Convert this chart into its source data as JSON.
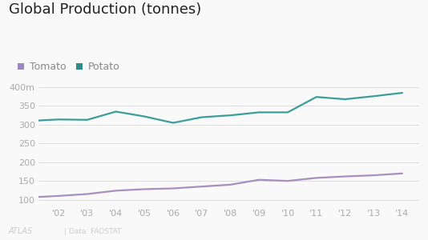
{
  "title": "Global Production (tonnes)",
  "years": [
    2001,
    2002,
    2003,
    2004,
    2005,
    2006,
    2007,
    2008,
    2009,
    2010,
    2011,
    2012,
    2013,
    2014
  ],
  "tomato": [
    106,
    110,
    115,
    124,
    128,
    130,
    135,
    140,
    153,
    150,
    158,
    162,
    165,
    170
  ],
  "potato": [
    310,
    314,
    313,
    335,
    322,
    305,
    320,
    325,
    333,
    333,
    374,
    368,
    376,
    385
  ],
  "tomato_color": "#a78fbf",
  "potato_color": "#3a9e9a",
  "background_color": "#f9f9f9",
  "grid_color": "#dddddd",
  "tick_labels": [
    "'02",
    "'03",
    "'04",
    "'05",
    "'06",
    "'07",
    "'08",
    "'09",
    "'10",
    "'11",
    "'12",
    "'13",
    "'14"
  ],
  "yticks": [
    100,
    150,
    200,
    250,
    300,
    350,
    400
  ],
  "ytick_labels": [
    "100",
    "150",
    "200",
    "250",
    "300",
    "350",
    "400m"
  ],
  "ylim": [
    82,
    415
  ],
  "xlim": [
    2001.3,
    2014.6
  ],
  "atlas_text": "ATLAS",
  "source_text": "Data: FAOSTAT",
  "title_fontsize": 13,
  "legend_fontsize": 9,
  "tick_fontsize": 8,
  "line_width": 1.6,
  "tick_color": "#aaaaaa",
  "title_color": "#222222",
  "legend_tomato_color": "#9b88c0",
  "legend_potato_color": "#2d8c87"
}
